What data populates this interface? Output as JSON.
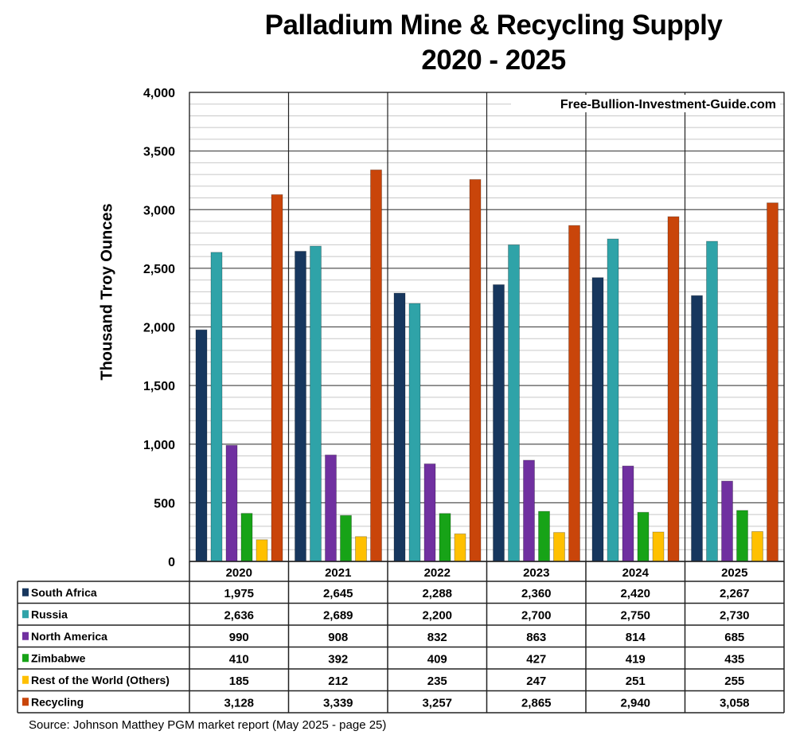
{
  "chart_data": {
    "type": "bar",
    "title": "Palladium Mine & Recycling Supply",
    "subtitle": "2020 - 2025",
    "ylabel": "Thousand Troy Ounces",
    "xlabel": "",
    "ylim": [
      0,
      4000
    ],
    "yticks": [
      "0",
      "500",
      "1,000",
      "1,500",
      "2,000",
      "2,500",
      "3,000",
      "3,500",
      "4,000"
    ],
    "grid": true,
    "watermark": "Free-Bullion-Investment-Guide.com",
    "categories": [
      "2020",
      "2021",
      "2022",
      "2023",
      "2024",
      "2025"
    ],
    "series": [
      {
        "name": "South Africa",
        "color": "#17375e",
        "values": [
          1975,
          2645,
          2288,
          2360,
          2420,
          2267
        ],
        "labels": [
          "1,975",
          "2,645",
          "2,288",
          "2,360",
          "2,420",
          "2,267"
        ]
      },
      {
        "name": "Russia",
        "color": "#2fa3a8",
        "values": [
          2636,
          2689,
          2200,
          2700,
          2750,
          2730
        ],
        "labels": [
          "2,636",
          "2,689",
          "2,200",
          "2,700",
          "2,750",
          "2,730"
        ]
      },
      {
        "name": "North America",
        "color": "#7030a0",
        "values": [
          990,
          908,
          832,
          863,
          814,
          685
        ],
        "labels": [
          "990",
          "908",
          "832",
          "863",
          "814",
          "685"
        ]
      },
      {
        "name": "Zimbabwe",
        "color": "#17a317",
        "values": [
          410,
          392,
          409,
          427,
          419,
          435
        ],
        "labels": [
          "410",
          "392",
          "409",
          "427",
          "419",
          "435"
        ]
      },
      {
        "name": "Rest of the World (Others)",
        "color": "#ffc000",
        "values": [
          185,
          212,
          235,
          247,
          251,
          255
        ],
        "labels": [
          "185",
          "212",
          "235",
          "247",
          "251",
          "255"
        ]
      },
      {
        "name": "Recycling",
        "color": "#c9450a",
        "values": [
          3128,
          3339,
          3257,
          2865,
          2940,
          3058
        ],
        "labels": [
          "3,128",
          "3,339",
          "3,257",
          "2,865",
          "2,940",
          "3,058"
        ]
      }
    ],
    "source": "Source: Johnson Matthey PGM market report (May 2025 - page 25)"
  }
}
